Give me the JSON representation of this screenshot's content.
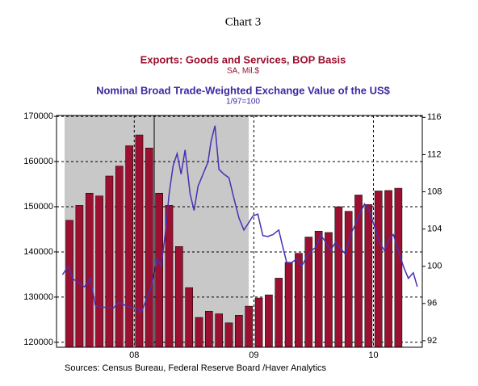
{
  "chart_data": {
    "type": "bar",
    "title": "Chart 3",
    "source": "Sources:  Census Bureau, Federal Reserve Board /Haver Analytics",
    "categories": [
      null,
      null,
      null,
      null,
      null,
      null,
      null,
      null,
      null,
      null,
      null,
      null,
      null,
      null,
      null,
      null,
      null,
      null,
      null,
      null,
      null,
      null,
      null,
      null,
      null,
      null,
      null,
      null,
      null,
      null,
      null,
      null,
      null,
      null
    ],
    "xlim": [
      -0.8,
      35.9
    ],
    "xticks": [
      {
        "value": 7,
        "label": "08"
      },
      {
        "value": 19,
        "label": "09"
      },
      {
        "value": 31,
        "label": "10"
      }
    ],
    "ylim": [
      118900,
      170200
    ],
    "yticks": [
      120000,
      130000,
      140000,
      150000,
      160000,
      170000
    ],
    "y2lim": [
      91.3,
      116.2
    ],
    "y2ticks": [
      92,
      96,
      100,
      104,
      108,
      112,
      116
    ],
    "grid": true,
    "series": [
      {
        "name": "Exports: Goods and Services, BOP Basis",
        "subtitle": "SA, Mil.$",
        "type": "bar",
        "color": "#9b1030",
        "values": [
          147000,
          150300,
          153000,
          152400,
          156800,
          159000,
          163500,
          165900,
          163000,
          153000,
          150300,
          141200,
          132100,
          125500,
          126900,
          126300,
          124300,
          126000,
          128000,
          129800,
          130500,
          134200,
          137700,
          139700,
          143300,
          144600,
          144300,
          150000,
          149000,
          152600,
          150500,
          153500,
          153600,
          154100
        ]
      },
      {
        "name": "Nominal Broad Trade-Weighted Exchange Value of the US$",
        "subtitle": "1/97=100",
        "type": "line",
        "axis": "y2",
        "color": "#4a2fb4",
        "x": [
          -0.2,
          0.4,
          0.8,
          1.4,
          2.0,
          2.6,
          3.1,
          3.6,
          4.2,
          4.9,
          5.4,
          6.1,
          6.6,
          7.3,
          7.7,
          8.1,
          8.7,
          9.3,
          9.7,
          10.1,
          10.5,
          10.9,
          11.3,
          11.7,
          12.1,
          12.6,
          13.0,
          13.4,
          13.9,
          14.4,
          14.7,
          15.1,
          15.5,
          16.0,
          16.5,
          17.0,
          17.5,
          18.0,
          18.5,
          18.9,
          19.4,
          19.9,
          20.4,
          20.9,
          21.5,
          21.9,
          22.3,
          22.8,
          23.3,
          23.8,
          24.3,
          24.8,
          25.3,
          25.7,
          26.2,
          26.7,
          27.2,
          27.7,
          28.2,
          28.7,
          29.1,
          29.6,
          30.1,
          30.6,
          31.1,
          31.6,
          32.1,
          32.6,
          33.0,
          33.5,
          34.0,
          34.5,
          35.0,
          35.4
        ],
        "values": [
          99.1,
          100,
          98.7,
          98.2,
          97.8,
          98.7,
          95.8,
          95.6,
          95.6,
          95.5,
          96.1,
          95.8,
          95.6,
          95.5,
          95.0,
          96.1,
          97.8,
          100.8,
          100,
          103.4,
          107.8,
          110.8,
          112.1,
          109.9,
          112.5,
          107.8,
          106,
          108.6,
          109.9,
          111.2,
          113.4,
          115.1,
          110.4,
          109.9,
          109.5,
          107.3,
          105.2,
          103.9,
          104.7,
          105.4,
          105.6,
          103.3,
          103.2,
          103.4,
          103.9,
          102.1,
          100.4,
          100.4,
          100.8,
          100,
          101,
          101.7,
          102.1,
          103.4,
          102.6,
          101.7,
          102.6,
          101.9,
          101.3,
          103.4,
          104.3,
          105.6,
          106.7,
          105.9,
          104.3,
          102.6,
          101.7,
          103,
          103.4,
          101.7,
          100,
          98.7,
          99.3,
          97.8
        ]
      }
    ]
  }
}
